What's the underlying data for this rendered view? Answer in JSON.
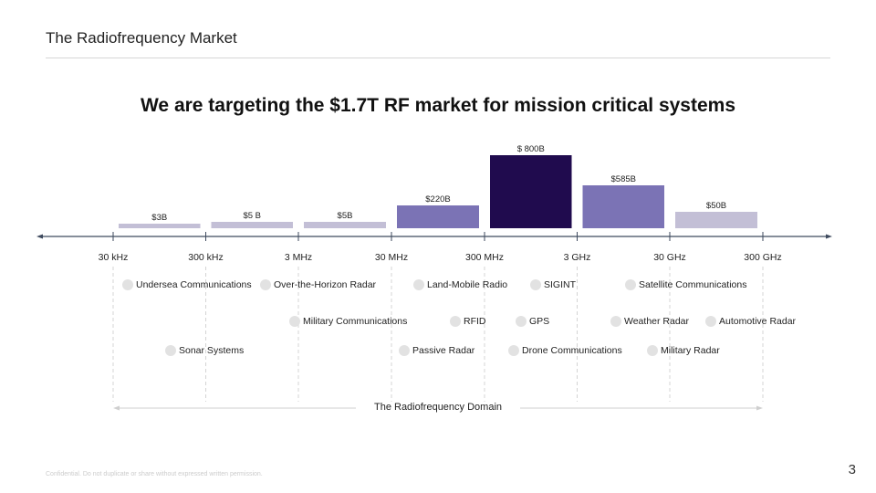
{
  "header": {
    "title": "The Radiofrequency Market"
  },
  "headline": "We are targeting the $1.7T RF market for mission critical systems",
  "chart_data": {
    "type": "bar",
    "categories": [
      "30 kHz–300 kHz",
      "300 kHz–3 MHz",
      "3 MHz–30 MHz",
      "30 MHz–300 MHz",
      "300 MHz–3 GHz",
      "3 GHz–30 GHz",
      "30 GHz–300 GHz"
    ],
    "values": [
      3,
      5,
      5,
      220,
      800,
      585,
      50
    ],
    "value_labels": [
      "$3B",
      "$5 B",
      "$5B",
      "$220B",
      "$ 800B",
      "$585B",
      "$50B"
    ],
    "unit": "$B",
    "tick_labels": [
      "30 kHz",
      "300 kHz",
      "3 MHz",
      "30 MHz",
      "300 MHz",
      "3 GHz",
      "30 GHz",
      "300 GHz"
    ],
    "bar_colors": [
      "#c3bfd6",
      "#c3bfd6",
      "#c3bfd6",
      "#7b73b5",
      "#200b4e",
      "#7b73b5",
      "#c3bfd6"
    ],
    "axis_color": "#3e4a5e",
    "xlabel": "The Radiofrequency Domain"
  },
  "applications": [
    {
      "label": "Undersea Communications",
      "row": 1
    },
    {
      "label": "Over-the-Horizon Radar",
      "row": 1
    },
    {
      "label": "Land-Mobile Radio",
      "row": 1
    },
    {
      "label": "SIGINT",
      "row": 1
    },
    {
      "label": "Satellite Communications",
      "row": 1
    },
    {
      "label": "Military Communications",
      "row": 2
    },
    {
      "label": "RFID",
      "row": 2
    },
    {
      "label": "GPS",
      "row": 2
    },
    {
      "label": "Weather Radar",
      "row": 2
    },
    {
      "label": "Automotive Radar",
      "row": 2
    },
    {
      "label": "Sonar Systems",
      "row": 3
    },
    {
      "label": "Passive Radar",
      "row": 3
    },
    {
      "label": "Drone Communications",
      "row": 3
    },
    {
      "label": "Military Radar",
      "row": 3
    }
  ],
  "footer": {
    "confidential": "Confidential. Do not duplicate or share without expressed written permission.",
    "page": "3"
  }
}
